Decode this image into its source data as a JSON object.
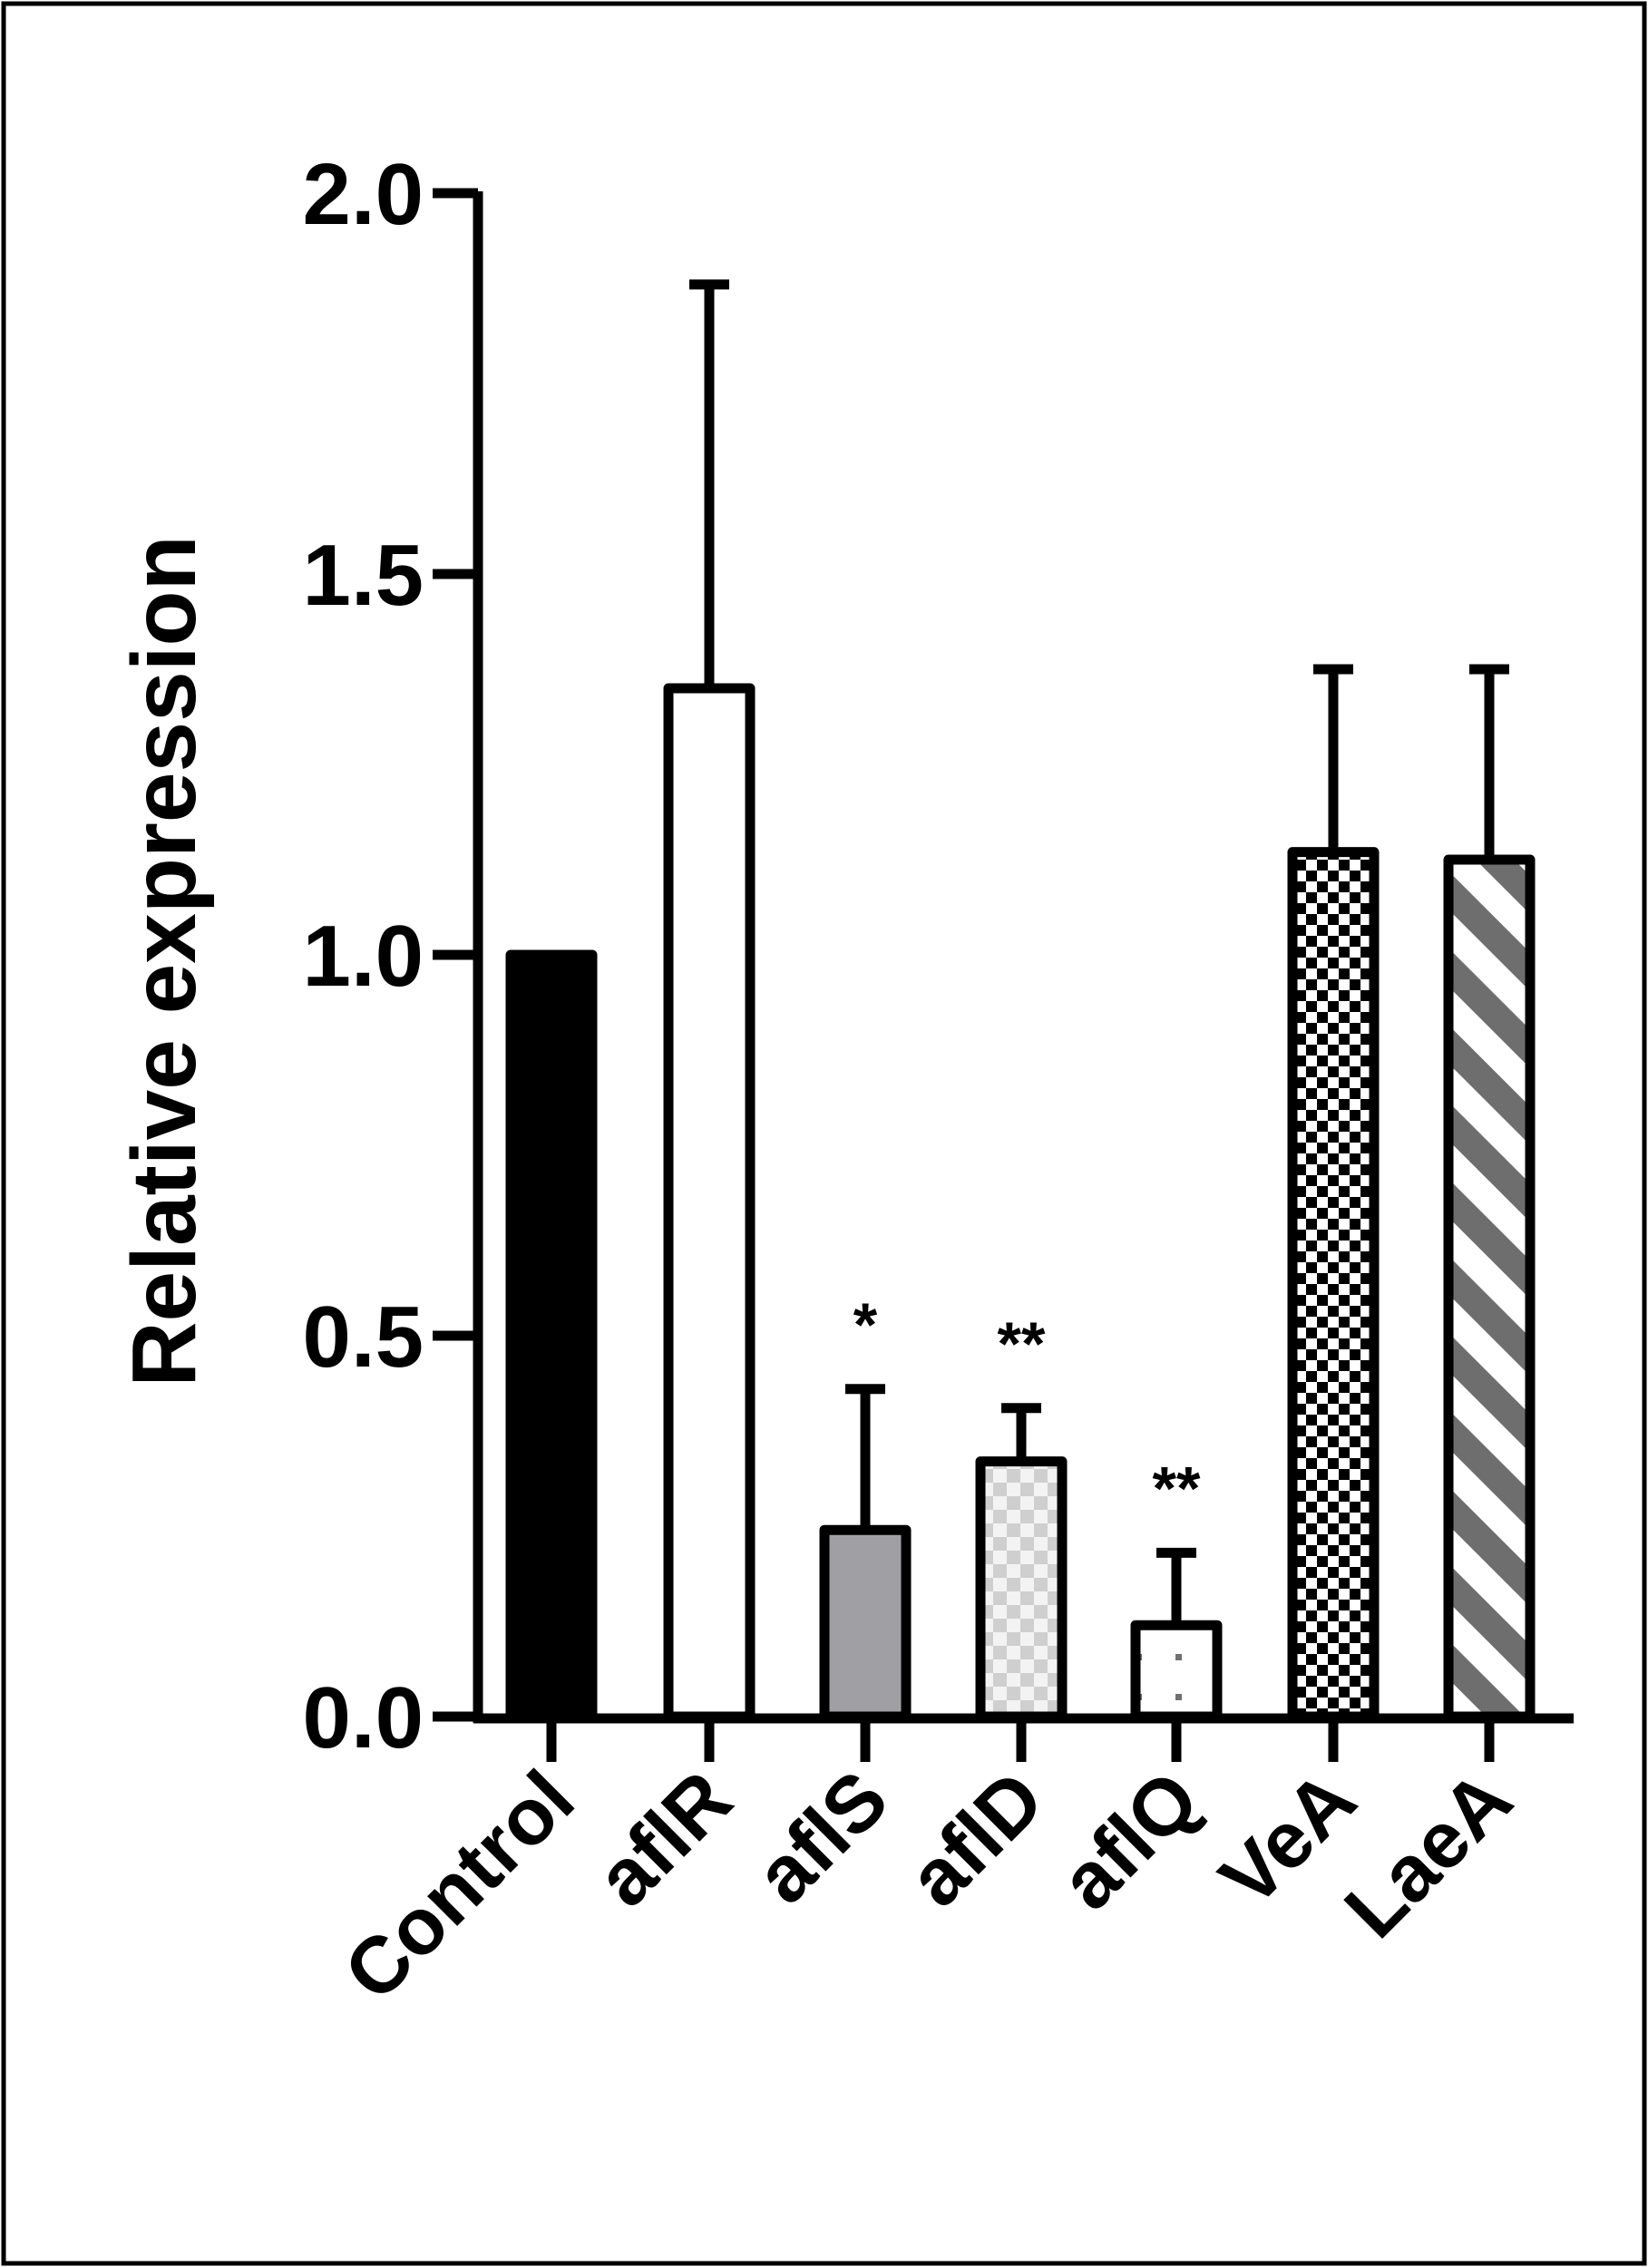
{
  "chart_data": {
    "type": "bar",
    "title": "",
    "xlabel": "",
    "ylabel": "Relative expression",
    "ylim": [
      0,
      2.0
    ],
    "yticks": [
      "0.0",
      "0.5",
      "1.0",
      "1.5",
      "2.0"
    ],
    "ytick_values": [
      0,
      0.5,
      1.0,
      1.5,
      2.0
    ],
    "grid": false,
    "legend": "none",
    "categories": [
      "Control",
      "aflR",
      "aflS",
      "aflD",
      "aflQ",
      "VeA",
      "LaeA"
    ],
    "values": [
      1.0,
      1.35,
      0.245,
      0.335,
      0.12,
      1.135,
      1.125
    ],
    "error_plus": [
      0,
      0.53,
      0.185,
      0.07,
      0.095,
      0.24,
      0.25
    ],
    "significance": [
      "",
      "",
      "*",
      "**",
      "**",
      "",
      ""
    ],
    "fills": [
      "solid-black",
      "white",
      "solid-gray",
      "light-checker",
      "sparse-dots",
      "dense-checker",
      "diagonal-stripes"
    ],
    "colors": {
      "black": "#000000",
      "gray": "#a0a0a4",
      "stripe": "#6e6e6e",
      "checker_light": "#d0d0d0"
    }
  }
}
